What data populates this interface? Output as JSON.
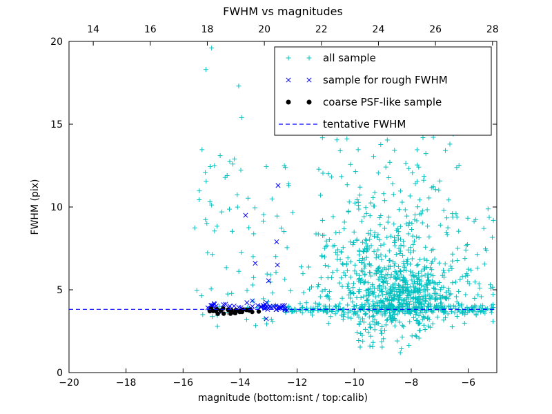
{
  "figure": {
    "background": "#ffffff"
  },
  "chart_data": {
    "type": "scatter",
    "title": "FWHM vs magnitudes",
    "xlabel": "magnitude (bottom:isnt / top:calib)",
    "ylabel": "FWHM (pix)",
    "xlim": [
      -20,
      -5
    ],
    "ylim": [
      0,
      20
    ],
    "x_ticks_bottom": [
      -20,
      -18,
      -16,
      -14,
      -12,
      -10,
      -8,
      -6
    ],
    "x_ticks_top": {
      "labels": [
        14,
        16,
        18,
        20,
        22,
        24,
        26,
        28
      ],
      "offset": 33.15
    },
    "y_ticks": [
      0,
      5,
      10,
      15,
      20
    ],
    "grid": false,
    "tentative_fwhm": 3.82,
    "seed": 42,
    "colors": {
      "all_sample": "#00bfbf",
      "rough_fwhm_sample": "#0000ff",
      "psf_like_sample": "#000000",
      "tentative_line": "#0000ff",
      "axis": "#000000"
    },
    "legend": [
      {
        "label": "all sample",
        "marker": "plus",
        "color": "#00bfbf"
      },
      {
        "label": "sample for rough FWHM",
        "marker": "x",
        "color": "#0000ff"
      },
      {
        "label": "coarse PSF-like sample",
        "marker": "dot",
        "color": "#000000"
      },
      {
        "label": "tentative FWHM",
        "marker": "dashed-line",
        "color": "#0000ff"
      }
    ],
    "series": [
      {
        "name": "all sample",
        "marker": "plus",
        "color": "#00bfbf",
        "points": [
          [
            -15.0,
            19.6
          ],
          [
            -15.2,
            18.3
          ],
          [
            -14.05,
            17.3
          ],
          [
            -13.95,
            15.4
          ],
          [
            -14.9,
            12.5
          ],
          [
            -12.45,
            15.5
          ],
          [
            -12.45,
            12.5
          ],
          [
            -10.3,
            16.3
          ],
          [
            -8.85,
            15.6
          ],
          [
            -7.3,
            15.0
          ],
          [
            -9.7,
            1.9
          ],
          [
            -9.45,
            1.6
          ],
          [
            -14.2,
            12.9
          ],
          [
            -14.7,
            13.1
          ]
        ],
        "clusters": [
          {
            "type": "uniform",
            "x": [
              -15.6,
              -13.4
            ],
            "y": [
              4.5,
              13.5
            ],
            "n": 40
          },
          {
            "type": "uniform",
            "x": [
              -15.55,
              -13.0
            ],
            "y": [
              2.6,
              4.5
            ],
            "n": 14
          },
          {
            "type": "uniform",
            "x": [
              -13.5,
              -11.6
            ],
            "y": [
              2.8,
              12.5
            ],
            "n": 30
          },
          {
            "type": "band",
            "x": [
              -12.55,
              -5.05
            ],
            "cy": 3.85,
            "sy": 0.16,
            "n": 260
          },
          {
            "type": "gauss",
            "cx": -8.3,
            "cy": 4.5,
            "sx": 0.85,
            "sy": 1.05,
            "n": 450
          },
          {
            "type": "gauss",
            "cx": -8.6,
            "cy": 6.8,
            "sx": 1.25,
            "sy": 2.0,
            "n": 290
          },
          {
            "type": "uniform",
            "x": [
              -11.3,
              -6.3
            ],
            "y": [
              9.0,
              15.8
            ],
            "n": 85
          },
          {
            "type": "uniform",
            "x": [
              -11.5,
              -9.4
            ],
            "y": [
              2.8,
              8.5
            ],
            "n": 70
          },
          {
            "type": "uniform",
            "x": [
              -6.4,
              -5.1
            ],
            "y": [
              2.9,
              9.5
            ],
            "n": 35
          },
          {
            "type": "uniform",
            "x": [
              -10.2,
              -8.5
            ],
            "y": [
              1.4,
              2.6
            ],
            "n": 10
          }
        ]
      },
      {
        "name": "sample for rough FWHM",
        "marker": "x",
        "color": "#0000ff",
        "points": [
          [
            -12.67,
            11.3
          ],
          [
            -13.81,
            9.5
          ],
          [
            -12.72,
            7.9
          ],
          [
            -13.47,
            6.6
          ],
          [
            -12.69,
            6.5
          ],
          [
            -13.0,
            5.55
          ],
          [
            -13.08,
            3.25
          ]
        ],
        "clusters": [
          {
            "type": "band",
            "x": [
              -15.15,
              -12.35
            ],
            "cy": 3.95,
            "sy": 0.13,
            "n": 55
          }
        ]
      },
      {
        "name": "coarse PSF-like sample",
        "marker": "dot",
        "color": "#000000",
        "points": [],
        "clusters": [
          {
            "type": "band",
            "x": [
              -15.1,
              -13.3
            ],
            "cy": 3.74,
            "sy": 0.07,
            "n": 30
          }
        ]
      }
    ]
  }
}
